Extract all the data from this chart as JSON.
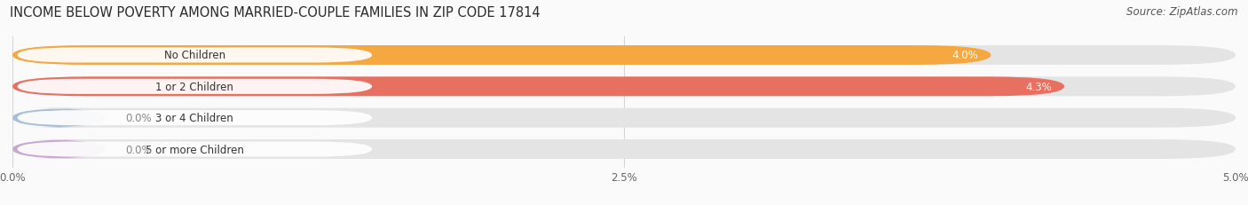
{
  "title": "INCOME BELOW POVERTY AMONG MARRIED-COUPLE FAMILIES IN ZIP CODE 17814",
  "source": "Source: ZipAtlas.com",
  "categories": [
    "No Children",
    "1 or 2 Children",
    "3 or 4 Children",
    "5 or more Children"
  ],
  "values": [
    4.0,
    4.3,
    0.0,
    0.0
  ],
  "bar_colors": [
    "#F5A840",
    "#E87060",
    "#A8BFD8",
    "#C8A8D0"
  ],
  "bar_bg_color": "#E4E4E4",
  "label_bg_color": "#FFFFFF",
  "xlim": [
    0,
    5.0
  ],
  "xticks": [
    0.0,
    2.5,
    5.0
  ],
  "xtick_labels": [
    "0.0%",
    "2.5%",
    "5.0%"
  ],
  "title_fontsize": 10.5,
  "source_fontsize": 8.5,
  "bar_label_fontsize": 8.5,
  "category_fontsize": 8.5,
  "bar_height": 0.62,
  "background_color": "#FAFAFA",
  "value_labels": [
    "4.0%",
    "4.3%",
    "0.0%",
    "0.0%"
  ],
  "value_label_colors": [
    "#FFFFFF",
    "#FFFFFF",
    "#888888",
    "#888888"
  ],
  "cat_label_color": "#333333",
  "zero_bar_width": 0.38
}
